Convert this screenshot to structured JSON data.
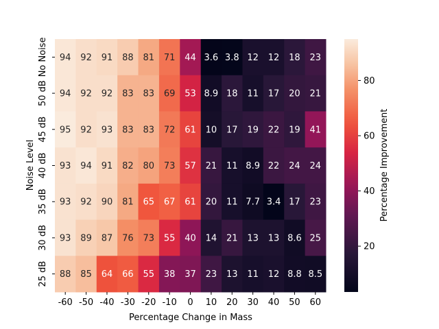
{
  "chart_data": {
    "type": "heatmap",
    "xlabel": "Percentage Change in Mass",
    "ylabel": "Noise Level",
    "x_categories": [
      "-60",
      "-50",
      "-40",
      "-30",
      "-20",
      "-10",
      "0",
      "10",
      "20",
      "30",
      "40",
      "50",
      "60"
    ],
    "y_categories": [
      "No Noise",
      "50 dB",
      "45 dB",
      "40 dB",
      "35 dB",
      "30 dB",
      "25 dB"
    ],
    "values": [
      [
        94,
        92,
        91,
        88,
        81,
        71,
        44,
        3.6,
        3.8,
        12,
        12,
        18,
        23
      ],
      [
        94,
        92,
        92,
        83,
        83,
        69,
        53,
        8.9,
        18,
        11,
        17,
        20,
        21
      ],
      [
        95,
        92,
        93,
        83,
        83,
        72,
        61,
        10,
        17,
        19,
        22,
        19,
        41
      ],
      [
        93,
        94,
        91,
        82,
        80,
        73,
        57,
        21,
        11,
        8.9,
        22,
        24,
        24
      ],
      [
        93,
        92,
        90,
        81,
        65,
        67,
        61,
        20,
        11,
        7.7,
        3.4,
        17,
        23
      ],
      [
        93,
        89,
        87,
        76,
        73,
        55,
        40,
        14,
        21,
        13,
        13,
        8.6,
        25
      ],
      [
        88,
        85,
        64,
        66,
        55,
        38,
        37,
        23,
        13,
        11,
        12,
        8.8,
        8.5
      ]
    ],
    "colorbar": {
      "label": "Percentage Improvement",
      "range": [
        3.4,
        95
      ],
      "ticks": [
        "20",
        "40",
        "60",
        "80"
      ],
      "colormap": "rocket"
    },
    "grid": false
  }
}
